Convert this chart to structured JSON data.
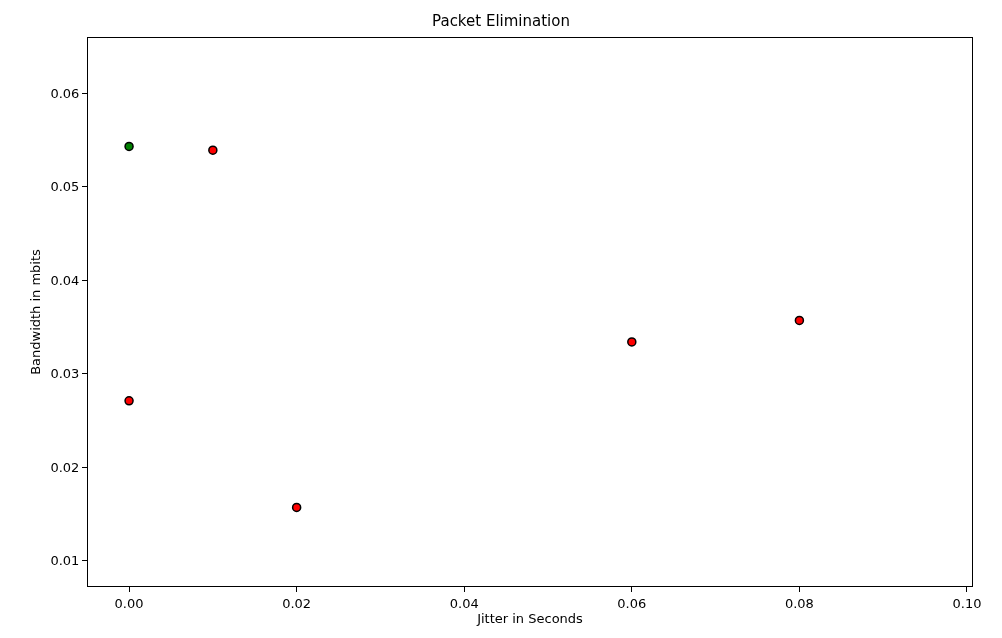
{
  "chart_data": {
    "type": "scatter",
    "title": "Packet Elimination",
    "xlabel": "Jitter in Seconds",
    "ylabel": "Bandwidth in mbits",
    "series": [
      {
        "color": "#ff0000",
        "x": [
          0.0,
          0.01,
          0.02,
          0.06,
          0.08
        ],
        "values": [
          0.0271,
          0.0539,
          0.0157,
          0.0334,
          0.0357
        ]
      },
      {
        "color": "#008000",
        "x": [
          0.0
        ],
        "values": [
          0.0543
        ]
      }
    ],
    "xlim": [
      -0.0049,
      0.1006
    ],
    "xticks": [
      {
        "value": 0,
        "label": "0.00"
      },
      {
        "value": 0.02,
        "label": "0.02"
      },
      {
        "value": 0.04,
        "label": "0.04"
      },
      {
        "value": 0.06,
        "label": "0.06"
      },
      {
        "value": 0.08,
        "label": "0.08"
      },
      {
        "value": 0.1,
        "label": "0.10"
      }
    ],
    "ylim": [
      0.0073,
      0.0659
    ],
    "yticks": [
      0.01,
      0.02,
      0.03,
      0.04,
      0.05,
      0.06
    ],
    "marker": "circle"
  }
}
